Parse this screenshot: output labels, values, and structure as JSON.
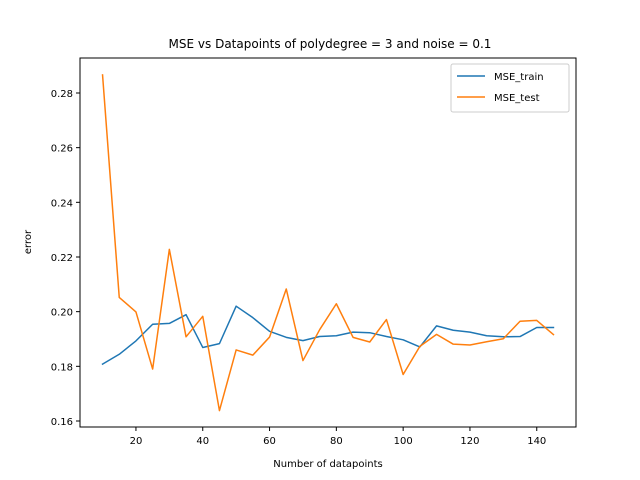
{
  "chart_data": {
    "type": "line",
    "title": "MSE vs Datapoints of polydegree = 3 and noise = 0.1",
    "xlabel": "Number of datapoints",
    "ylabel": "error",
    "xlim": [
      3.25,
      151.75
    ],
    "ylim": [
      0.1578,
      0.2928
    ],
    "xticks": [
      20,
      40,
      60,
      80,
      100,
      120,
      140
    ],
    "xtick_labels": [
      "20",
      "40",
      "60",
      "80",
      "100",
      "120",
      "140"
    ],
    "yticks": [
      0.16,
      0.18,
      0.2,
      0.22,
      0.24,
      0.26,
      0.28
    ],
    "ytick_labels": [
      "0.16",
      "0.18",
      "0.20",
      "0.22",
      "0.24",
      "0.26",
      "0.28"
    ],
    "grid": false,
    "legend_position": "upper right",
    "x": [
      10,
      15,
      20,
      25,
      30,
      35,
      40,
      45,
      50,
      55,
      60,
      65,
      70,
      75,
      80,
      85,
      90,
      95,
      100,
      105,
      110,
      115,
      120,
      125,
      130,
      135,
      140,
      145
    ],
    "series": [
      {
        "name": "MSE_train",
        "color": "#1f77b4",
        "values": [
          0.1808,
          0.1844,
          0.1893,
          0.1954,
          0.1957,
          0.1989,
          0.1869,
          0.1883,
          0.202,
          0.1978,
          0.1928,
          0.1906,
          0.1894,
          0.1909,
          0.1912,
          0.1925,
          0.1923,
          0.1909,
          0.1897,
          0.1871,
          0.1948,
          0.1932,
          0.1925,
          0.1912,
          0.1908,
          0.1909,
          0.1942,
          0.1942
        ]
      },
      {
        "name": "MSE_test",
        "color": "#ff7f0e",
        "values": [
          0.2866,
          0.2052,
          0.1999,
          0.179,
          0.2228,
          0.1908,
          0.1983,
          0.1638,
          0.186,
          0.1841,
          0.1907,
          0.2083,
          0.1821,
          0.1934,
          0.2029,
          0.1906,
          0.1889,
          0.1971,
          0.177,
          0.1873,
          0.1917,
          0.1881,
          0.1878,
          0.189,
          0.1901,
          0.1965,
          0.1968,
          0.1916
        ]
      }
    ]
  }
}
